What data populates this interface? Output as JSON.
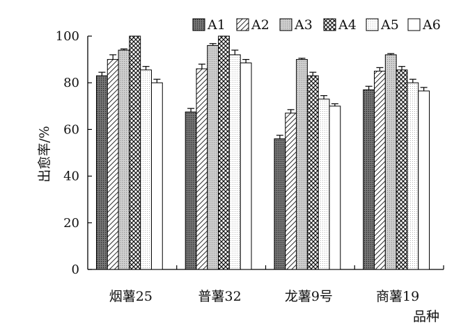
{
  "chart_data": {
    "type": "bar",
    "categories": [
      "烟薯25",
      "普薯32",
      "龙薯9号",
      "商薯19"
    ],
    "series": [
      {
        "name": "A1",
        "values": [
          83,
          67.5,
          56,
          77
        ]
      },
      {
        "name": "A2",
        "values": [
          90,
          86,
          67,
          85
        ]
      },
      {
        "name": "A3",
        "values": [
          94,
          96,
          90,
          92
        ]
      },
      {
        "name": "A4",
        "values": [
          100,
          100,
          83,
          85.5
        ]
      },
      {
        "name": "A5",
        "values": [
          85.5,
          92,
          73,
          80
        ]
      },
      {
        "name": "A6",
        "values": [
          80,
          88.5,
          70,
          76.5
        ]
      }
    ],
    "errors": [
      [
        1.5,
        1.5,
        1.5,
        1.5
      ],
      [
        2,
        2,
        1.5,
        1.5
      ],
      [
        0.5,
        0.8,
        0.5,
        0.5
      ],
      [
        0,
        0,
        1.5,
        1.5
      ],
      [
        1.5,
        2,
        1.5,
        1.5
      ],
      [
        1.5,
        1.5,
        1,
        1.5
      ]
    ],
    "ylabel": "出愈率/%",
    "xlabel": "品种",
    "ylim": [
      0,
      100
    ],
    "yticks": [
      0,
      20,
      40,
      60,
      80,
      100
    ],
    "grid": false,
    "legend_position": "top"
  },
  "fills": [
    "#7a7a7a",
    "#ffffff",
    "#c4c4c4",
    "#ffffff",
    "#f1f1f1",
    "#ffffff"
  ],
  "patterns": [
    "dots",
    "diag",
    "dots",
    "cross",
    "dots",
    "none"
  ]
}
